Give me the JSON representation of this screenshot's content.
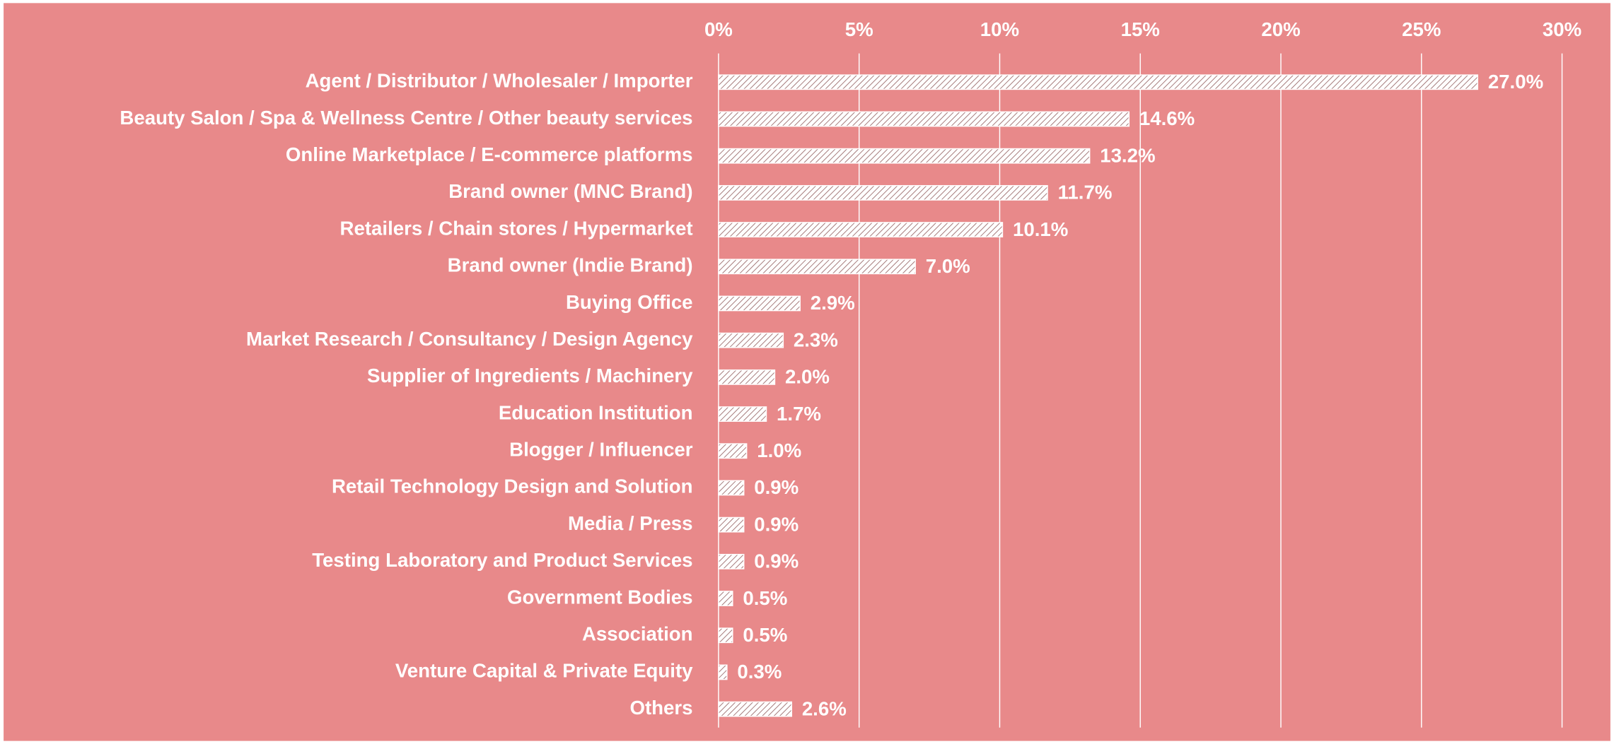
{
  "chart_data": {
    "type": "bar",
    "orientation": "horizontal",
    "categories": [
      "Agent / Distributor / Wholesaler / Importer",
      "Beauty Salon / Spa & Wellness Centre / Other beauty services",
      "Online Marketplace / E-commerce platforms",
      "Brand owner (MNC Brand)",
      "Retailers / Chain stores / Hypermarket",
      "Brand owner (Indie Brand)",
      "Buying Office",
      "Market Research / Consultancy / Design Agency",
      "Supplier of Ingredients / Machinery",
      "Education Institution",
      "Blogger / Influencer",
      "Retail Technology Design and Solution",
      "Media / Press",
      "Testing Laboratory and Product Services",
      "Government Bodies",
      "Association",
      "Venture Capital & Private Equity",
      "Others"
    ],
    "values": [
      27.0,
      14.6,
      13.2,
      11.7,
      10.1,
      7.0,
      2.9,
      2.3,
      2.0,
      1.7,
      1.0,
      0.9,
      0.9,
      0.9,
      0.5,
      0.5,
      0.3,
      2.6
    ],
    "value_labels": [
      "27.0%",
      "14.6%",
      "13.2%",
      "11.7%",
      "10.1%",
      "7.0%",
      "2.9%",
      "2.3%",
      "2.0%",
      "1.7%",
      "1.0%",
      "0.9%",
      "0.9%",
      "0.9%",
      "0.5%",
      "0.5%",
      "0.3%",
      "2.6%"
    ],
    "color": "#ffffff",
    "background": "#e8898a",
    "xlim": [
      0,
      30
    ],
    "xticks": [
      {
        "value": 0,
        "label": "0%"
      },
      {
        "value": 5,
        "label": "5%"
      },
      {
        "value": 10,
        "label": "10%"
      },
      {
        "value": 15,
        "label": "15%"
      },
      {
        "value": 20,
        "label": "20%"
      },
      {
        "value": 25,
        "label": "25%"
      },
      {
        "value": 30,
        "label": "30%"
      }
    ],
    "grid": true
  }
}
